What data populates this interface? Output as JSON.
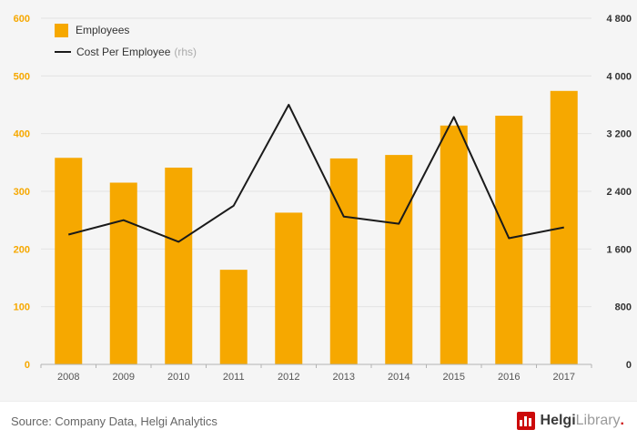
{
  "chart_data": {
    "type": "bar",
    "categories": [
      "2008",
      "2009",
      "2010",
      "2011",
      "2012",
      "2013",
      "2014",
      "2015",
      "2016",
      "2017"
    ],
    "series": [
      {
        "name": "Employees",
        "type": "bar",
        "axis": "left",
        "color": "#f6a800",
        "values": [
          358,
          315,
          341,
          164,
          263,
          357,
          363,
          414,
          431,
          474
        ]
      },
      {
        "name": "Cost Per Employee",
        "type": "line",
        "axis": "right",
        "color": "#1a1a1a",
        "values": [
          1800,
          2000,
          1700,
          2200,
          3600,
          2050,
          1950,
          3430,
          1750,
          1900
        ]
      }
    ],
    "title": "",
    "xlabel": "",
    "ylabel": "",
    "left_axis": {
      "min": 0,
      "max": 600,
      "tick_step": 100,
      "labels": [
        "0",
        "100",
        "200",
        "300",
        "400",
        "500",
        "600"
      ],
      "label_color": "#f6a800"
    },
    "right_axis": {
      "min": 0,
      "max": 4800,
      "tick_step": 800,
      "labels": [
        "0",
        "800",
        "1 600",
        "2 400",
        "3 200",
        "4 000",
        "4 800"
      ],
      "label_color": "#333333"
    },
    "grid": true,
    "legend_position": "top-left"
  },
  "legend": {
    "items": [
      {
        "label": "Employees",
        "suffix": ""
      },
      {
        "label": "Cost Per Employee",
        "suffix": "(rhs)"
      }
    ]
  },
  "footer": {
    "source": "Source: Company Data, Helgi Analytics",
    "brand": {
      "part1": "Helgi",
      "part2": "Library",
      "dot": "."
    }
  },
  "colors": {
    "bar": "#f6a800",
    "line": "#1a1a1a",
    "plot_background": "#f5f5f5",
    "gridline": "#e3e3e3",
    "axis": "#b3b3b3",
    "x_label": "#555555",
    "brand_red": "#cc0a0a"
  }
}
